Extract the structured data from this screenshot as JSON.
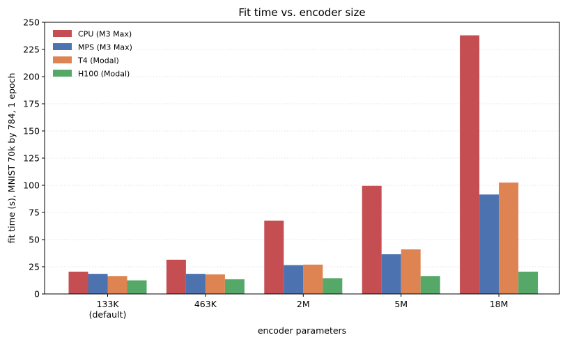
{
  "chart_data": {
    "type": "bar",
    "title": "Fit time vs. encoder size",
    "xlabel": "encoder parameters",
    "ylabel": "fit time (s), MNIST 70k by 784, 1 epoch",
    "categories": [
      "133K\n(default)",
      "463K",
      "2M",
      "5M",
      "18M"
    ],
    "ylim": [
      0,
      250
    ],
    "yticks": [
      0,
      25,
      50,
      75,
      100,
      125,
      150,
      175,
      200,
      225,
      250
    ],
    "grid": "y, dotted",
    "legend_position": "top-left",
    "series": [
      {
        "name": "CPU (M3 Max)",
        "color": "#c44e52",
        "values": [
          20.5,
          31.5,
          67.5,
          99.5,
          238
        ]
      },
      {
        "name": "MPS (M3 Max)",
        "color": "#4c72b0",
        "values": [
          18.5,
          18.5,
          26.5,
          36.5,
          91.5
        ]
      },
      {
        "name": "T4 (Modal)",
        "color": "#dd8452",
        "values": [
          16.5,
          18,
          27,
          41,
          102.5
        ]
      },
      {
        "name": "H100 (Modal)",
        "color": "#55a868",
        "values": [
          12.5,
          13.5,
          14.5,
          16.5,
          20.5
        ]
      }
    ]
  }
}
